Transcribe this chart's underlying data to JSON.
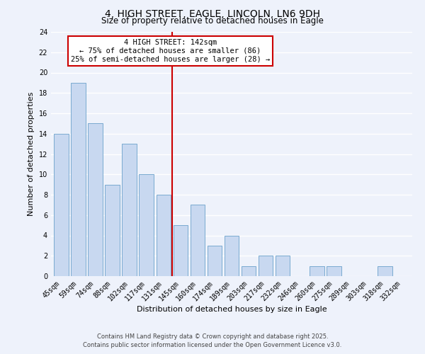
{
  "title": "4, HIGH STREET, EAGLE, LINCOLN, LN6 9DH",
  "subtitle": "Size of property relative to detached houses in Eagle",
  "xlabel": "Distribution of detached houses by size in Eagle",
  "ylabel": "Number of detached properties",
  "bar_labels": [
    "45sqm",
    "59sqm",
    "74sqm",
    "88sqm",
    "102sqm",
    "117sqm",
    "131sqm",
    "145sqm",
    "160sqm",
    "174sqm",
    "189sqm",
    "203sqm",
    "217sqm",
    "232sqm",
    "246sqm",
    "260sqm",
    "275sqm",
    "289sqm",
    "303sqm",
    "318sqm",
    "332sqm"
  ],
  "bar_values": [
    14,
    19,
    15,
    9,
    13,
    10,
    8,
    5,
    7,
    3,
    4,
    1,
    2,
    2,
    0,
    1,
    1,
    0,
    0,
    1,
    0
  ],
  "bar_color": "#c8d8f0",
  "bar_edge_color": "#7aaad0",
  "background_color": "#eef2fb",
  "grid_color": "#ffffff",
  "vline_color": "#cc0000",
  "annotation_line1": "4 HIGH STREET: 142sqm",
  "annotation_line2": "← 75% of detached houses are smaller (86)",
  "annotation_line3": "25% of semi-detached houses are larger (28) →",
  "annotation_box_color": "#ffffff",
  "annotation_box_edge_color": "#cc0000",
  "ylim": [
    0,
    24
  ],
  "yticks": [
    0,
    2,
    4,
    6,
    8,
    10,
    12,
    14,
    16,
    18,
    20,
    22,
    24
  ],
  "footer_line1": "Contains HM Land Registry data © Crown copyright and database right 2025.",
  "footer_line2": "Contains public sector information licensed under the Open Government Licence v3.0.",
  "title_fontsize": 10,
  "subtitle_fontsize": 8.5,
  "axis_label_fontsize": 8,
  "tick_fontsize": 7,
  "annotation_fontsize": 7.5,
  "footer_fontsize": 6
}
